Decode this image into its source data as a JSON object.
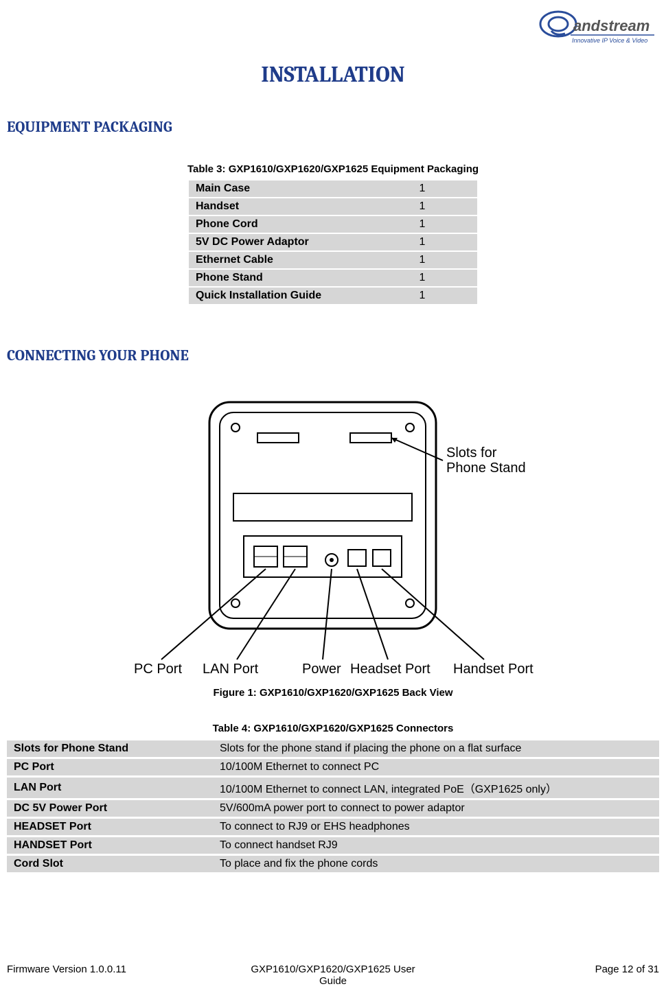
{
  "logo": {
    "brand": "andstream",
    "tagline": "Innovative IP Voice & Video"
  },
  "title": "INSTALLATION",
  "section1": {
    "heading": "EQUIPMENT PACKAGING",
    "table_caption": "Table 3: GXP1610/GXP1620/GXP1625 Equipment Packaging",
    "rows": [
      {
        "label": "Main Case",
        "qty": "1"
      },
      {
        "label": "Handset",
        "qty": "1"
      },
      {
        "label": "Phone Cord",
        "qty": "1"
      },
      {
        "label": "5V DC Power Adaptor",
        "qty": "1"
      },
      {
        "label": "Ethernet Cable",
        "qty": "1"
      },
      {
        "label": "Phone Stand",
        "qty": "1"
      },
      {
        "label": "Quick Installation Guide",
        "qty": "1"
      }
    ]
  },
  "section2": {
    "heading": "CONNECTING YOUR PHONE",
    "figure_caption": "Figure 1: GXP1610/GXP1620/GXP1625 Back View",
    "diagram_labels": {
      "slots_stand": "Slots for\nPhone Stand",
      "pc_port": "PC Port",
      "lan_port": "LAN Port",
      "power": "Power",
      "headset_port": "Headset Port",
      "handset_port": "Handset Port"
    },
    "table_caption": "Table 4: GXP1610/GXP1620/GXP1625 Connectors",
    "rows": [
      {
        "label": "Slots for Phone Stand",
        "desc": "Slots for the phone stand if placing the phone on a flat surface"
      },
      {
        "label": "PC Port",
        "desc": "10/100M Ethernet to connect PC"
      },
      {
        "label": "LAN Port",
        "desc": "10/100M Ethernet to connect LAN, integrated PoE（GXP1625 only）"
      },
      {
        "label": "DC 5V Power Port",
        "desc": "5V/600mA power port to connect to power adaptor"
      },
      {
        "label": "HEADSET Port",
        "desc": "To connect to RJ9 or EHS headphones"
      },
      {
        "label": "HANDSET Port",
        "desc": "To connect handset RJ9"
      },
      {
        "label": "Cord Slot",
        "desc": "To place and fix the phone cords"
      }
    ]
  },
  "footer": {
    "left": "Firmware Version 1.0.0.11",
    "center_line1": "GXP1610/GXP1620/GXP1625 User",
    "center_line2": "Guide",
    "right_prefix": "Page ",
    "right_page": "12",
    "right_mid": " of ",
    "right_total": "31"
  },
  "colors": {
    "heading": "#1f3c8a",
    "row_bg": "#d6d6d6",
    "text": "#000000",
    "logo_gray": "#555555",
    "logo_blue": "#2a4d9b"
  }
}
